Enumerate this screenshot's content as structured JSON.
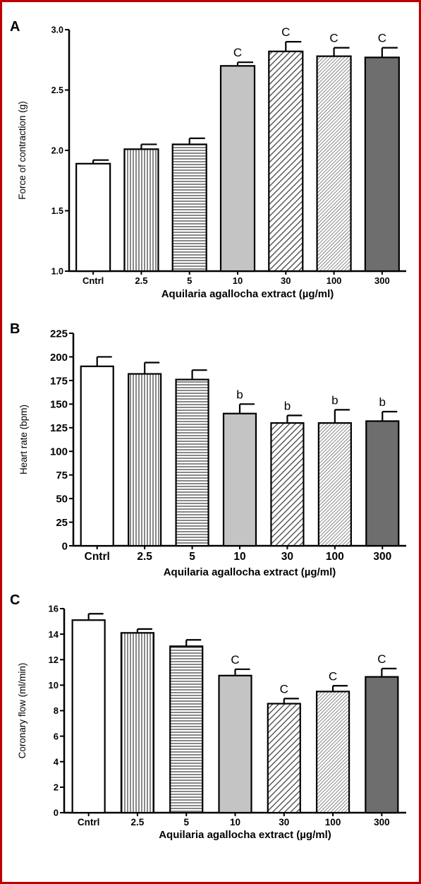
{
  "chart_data": [
    {
      "type": "bar",
      "panel": "A",
      "categories": [
        "Cntrl",
        "2.5",
        "5",
        "10",
        "30",
        "100",
        "300"
      ],
      "values": [
        1.89,
        2.01,
        2.05,
        2.7,
        2.82,
        2.78,
        2.77
      ],
      "errors": [
        0.03,
        0.04,
        0.05,
        0.03,
        0.08,
        0.07,
        0.08
      ],
      "annotations": [
        "",
        "",
        "",
        "C",
        "C",
        "C",
        "C"
      ],
      "xlabel": "Aquilaria agallocha extract (µg/ml)",
      "ylabel": "Force of contraction (g)",
      "ylim": [
        1.0,
        3.0
      ],
      "yticks": [
        "1.0",
        "1.5",
        "2.0",
        "2.5",
        "3.0"
      ],
      "ytick_values": [
        1.0,
        1.5,
        2.0,
        2.5,
        3.0
      ],
      "grid": false,
      "legend": "none"
    },
    {
      "type": "bar",
      "panel": "B",
      "categories": [
        "Cntrl",
        "2.5",
        "5",
        "10",
        "30",
        "100",
        "300"
      ],
      "values": [
        190,
        182,
        176,
        140,
        130,
        130,
        132
      ],
      "errors": [
        10,
        12,
        10,
        10,
        8,
        14,
        10
      ],
      "annotations": [
        "",
        "",
        "",
        "b",
        "b",
        "b",
        "b"
      ],
      "xlabel": "Aquilaria agallocha extract (µg/ml)",
      "ylabel": "Heart rate (bpm)",
      "ylim": [
        0,
        225
      ],
      "yticks": [
        "0",
        "25",
        "50",
        "75",
        "100",
        "125",
        "150",
        "175",
        "200",
        "225"
      ],
      "ytick_values": [
        0,
        25,
        50,
        75,
        100,
        125,
        150,
        175,
        200,
        225
      ],
      "grid": false,
      "legend": "none"
    },
    {
      "type": "bar",
      "panel": "C",
      "categories": [
        "Cntrl",
        "2.5",
        "5",
        "10",
        "30",
        "100",
        "300"
      ],
      "values": [
        15.1,
        14.1,
        13.05,
        10.75,
        8.55,
        9.5,
        10.65
      ],
      "errors": [
        0.5,
        0.3,
        0.5,
        0.5,
        0.4,
        0.45,
        0.65
      ],
      "annotations": [
        "",
        "",
        "",
        "C",
        "C",
        "C",
        "C"
      ],
      "xlabel": "Aquilaria agallocha extract (µg/ml)",
      "ylabel": "Coronary flow (ml/min)",
      "ylim": [
        0,
        16
      ],
      "yticks": [
        "0",
        "2",
        "4",
        "6",
        "8",
        "10",
        "12",
        "14",
        "16"
      ],
      "ytick_values": [
        0,
        2,
        4,
        6,
        8,
        10,
        12,
        14,
        16
      ],
      "grid": false,
      "legend": "none"
    }
  ],
  "colors": {
    "frame": "#c00000",
    "control_fill": "#ffffff",
    "stripe": "#555555",
    "bar_10_fill": "#c4c4c4",
    "bar_300_fill": "#6e6e6e"
  },
  "bar_patterns": [
    "solid-white",
    "vertical-lines",
    "horizontal-lines",
    "solid-light-gray",
    "diagonal-lines",
    "diagonal-lines-fine",
    "solid-dark-gray"
  ]
}
